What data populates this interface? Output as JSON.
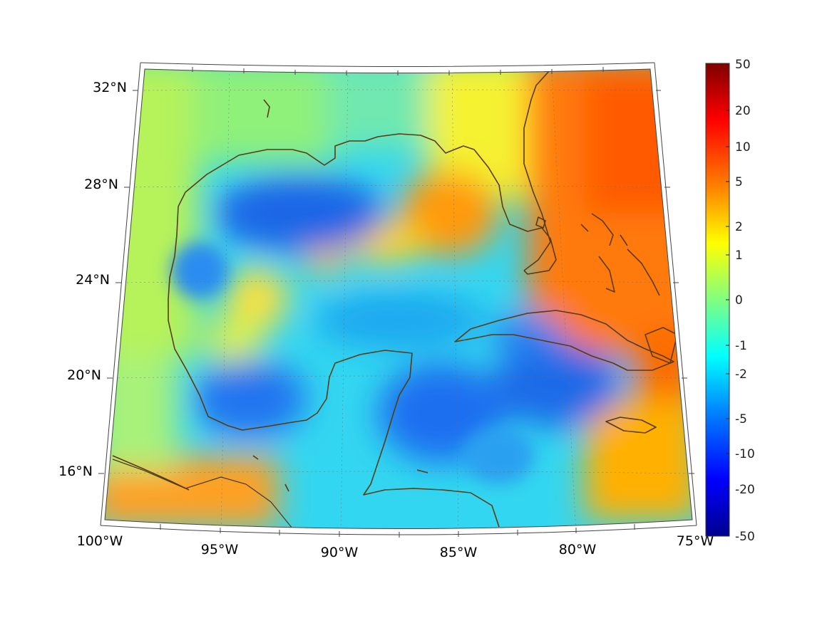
{
  "map": {
    "lon_ticks": [
      "100°W",
      "95°W",
      "90°W",
      "85°W",
      "80°W",
      "75°W"
    ],
    "lat_ticks": [
      "32°N",
      "28°N",
      "24°N",
      "20°N",
      "16°N"
    ],
    "lon_range": [
      -100,
      -75
    ],
    "lat_range": [
      14,
      33
    ],
    "colormap": "jet",
    "coastline_color": "#5a3a10",
    "grid": true
  },
  "colorbar": {
    "labels": [
      "50",
      "20",
      "10",
      "5",
      "2",
      "1",
      "0",
      "-1",
      "-2",
      "-5",
      "-10",
      "-20",
      "-50"
    ],
    "scale": "symmetric-log",
    "range": [
      -50,
      50
    ]
  }
}
